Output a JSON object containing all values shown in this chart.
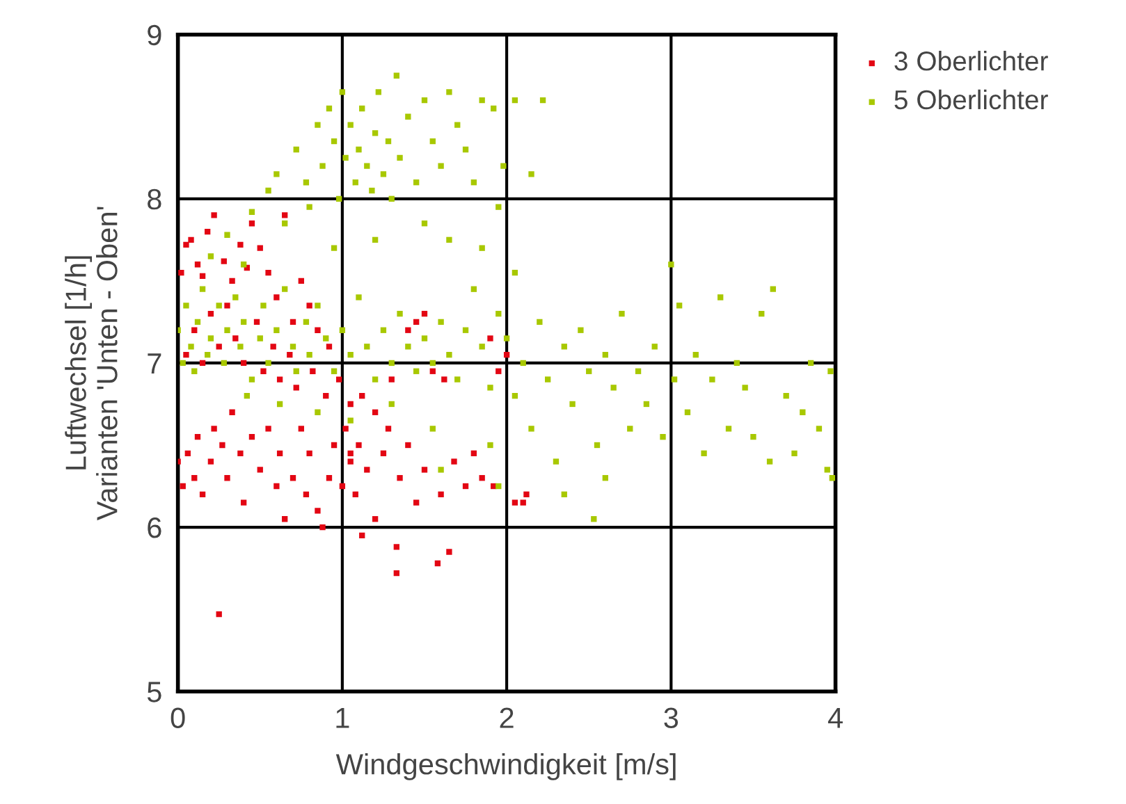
{
  "chart_data": {
    "type": "scatter",
    "xlabel": "Windgeschwindigkeit [m/s]",
    "ylabel": "Luftwechsel [1/h]\nVarianten 'Unten - Oben'",
    "xlim": [
      0,
      4
    ],
    "xticks": [
      0,
      1,
      2,
      3,
      4
    ],
    "ylim": [
      5,
      9
    ],
    "yticks": [
      5,
      6,
      7,
      8,
      9
    ],
    "grid": true,
    "legend": "top right",
    "marker": "square",
    "series": [
      {
        "name": "3 Oberlichter",
        "color": "#e30613",
        "x": [
          0.02,
          0.05,
          0.08,
          0.12,
          0.15,
          0.18,
          0.22,
          0.28,
          0.3,
          0.33,
          0.38,
          0.42,
          0.45,
          0.5,
          0.55,
          0.6,
          0.65,
          0.7,
          0.75,
          0.8,
          0.1,
          0.2,
          0.35,
          0.48,
          0.58,
          0.68,
          0.85,
          0.92,
          0.05,
          0.15,
          0.25,
          0.4,
          0.52,
          0.62,
          0.72,
          0.82,
          0.9,
          0.98,
          1.05,
          1.12,
          1.2,
          1.3,
          1.4,
          1.45,
          1.5,
          1.55,
          1.62,
          1.9,
          1.95,
          2.0,
          0.0,
          0.03,
          0.06,
          0.1,
          0.12,
          0.15,
          0.2,
          0.22,
          0.27,
          0.3,
          0.33,
          0.38,
          0.4,
          0.45,
          0.5,
          0.55,
          0.6,
          0.62,
          0.65,
          0.7,
          0.75,
          0.78,
          0.8,
          0.85,
          0.88,
          0.92,
          0.95,
          1.0,
          1.02,
          1.05,
          1.08,
          1.1,
          1.15,
          1.2,
          1.25,
          1.28,
          1.35,
          1.4,
          1.45,
          1.5,
          1.6,
          1.68,
          1.75,
          1.8,
          1.85,
          1.92,
          2.05,
          2.1,
          2.12,
          0.25,
          1.33,
          1.33,
          1.58,
          1.65,
          1.12,
          1.05
        ],
        "values": [
          7.55,
          7.72,
          7.75,
          7.6,
          7.53,
          7.8,
          7.9,
          7.62,
          7.35,
          7.5,
          7.72,
          7.58,
          7.85,
          7.7,
          7.55,
          7.4,
          7.9,
          7.25,
          7.5,
          7.35,
          7.2,
          7.3,
          7.15,
          7.25,
          7.1,
          7.05,
          7.2,
          7.1,
          7.05,
          7.0,
          7.1,
          7.0,
          6.95,
          6.9,
          6.85,
          6.95,
          6.8,
          6.9,
          6.75,
          6.8,
          6.7,
          6.9,
          7.2,
          7.25,
          7.3,
          6.95,
          6.9,
          7.15,
          6.95,
          7.05,
          6.4,
          6.25,
          6.45,
          6.3,
          6.55,
          6.2,
          6.4,
          6.6,
          6.5,
          6.3,
          6.7,
          6.45,
          6.15,
          6.55,
          6.35,
          6.6,
          6.25,
          6.45,
          6.05,
          6.3,
          6.6,
          6.2,
          6.45,
          6.1,
          6.0,
          6.3,
          6.5,
          6.25,
          6.6,
          6.4,
          6.2,
          6.5,
          6.35,
          6.05,
          6.45,
          6.6,
          6.3,
          6.5,
          6.15,
          6.35,
          6.2,
          6.4,
          6.25,
          6.45,
          6.3,
          6.25,
          6.15,
          6.15,
          6.2,
          5.47,
          5.72,
          5.88,
          5.78,
          5.85,
          5.95,
          6.45
        ]
      },
      {
        "name": "5 Oberlichter",
        "color": "#a8c800",
        "x": [
          0.3,
          0.45,
          0.55,
          0.6,
          0.65,
          0.72,
          0.78,
          0.8,
          0.85,
          0.88,
          0.92,
          0.95,
          0.98,
          1.0,
          1.02,
          1.05,
          1.08,
          1.1,
          1.12,
          1.15,
          1.18,
          1.2,
          1.22,
          1.25,
          1.28,
          1.3,
          1.33,
          1.35,
          1.4,
          1.45,
          1.5,
          1.55,
          1.6,
          1.65,
          1.7,
          1.75,
          1.8,
          1.85,
          1.92,
          2.05,
          2.22,
          1.98,
          2.15,
          1.5,
          1.65,
          1.2,
          0.95,
          0.4,
          0.2,
          1.85,
          2.05,
          1.95,
          0.0,
          0.03,
          0.05,
          0.08,
          0.1,
          0.12,
          0.15,
          0.18,
          0.2,
          0.25,
          0.28,
          0.3,
          0.35,
          0.38,
          0.4,
          0.45,
          0.5,
          0.52,
          0.55,
          0.6,
          0.65,
          0.7,
          0.72,
          0.78,
          0.8,
          0.85,
          0.9,
          0.95,
          1.0,
          1.05,
          1.1,
          1.15,
          1.2,
          1.25,
          1.3,
          1.35,
          1.4,
          1.45,
          1.5,
          1.55,
          1.6,
          1.65,
          1.7,
          1.75,
          1.8,
          1.85,
          1.9,
          1.95,
          0.42,
          0.62,
          0.85,
          1.05,
          1.3,
          1.55,
          1.9,
          2.0,
          2.05,
          2.1,
          2.15,
          2.2,
          2.25,
          2.3,
          2.35,
          2.4,
          2.45,
          2.5,
          2.53,
          2.55,
          2.6,
          2.65,
          2.7,
          2.75,
          2.8,
          2.85,
          2.9,
          2.95,
          3.0,
          3.02,
          3.05,
          3.1,
          3.15,
          3.2,
          3.25,
          3.3,
          3.35,
          3.4,
          3.45,
          3.5,
          3.55,
          3.6,
          3.62,
          3.7,
          3.75,
          3.8,
          3.85,
          3.9,
          3.95,
          3.98,
          3.97,
          2.6,
          2.35,
          1.95,
          1.6
        ],
        "values": [
          7.78,
          7.92,
          8.05,
          8.15,
          7.85,
          8.3,
          8.1,
          7.95,
          8.45,
          8.2,
          8.55,
          8.35,
          8.0,
          8.65,
          8.25,
          8.45,
          8.1,
          8.3,
          8.55,
          8.2,
          8.05,
          8.4,
          8.65,
          8.15,
          8.35,
          8.0,
          8.75,
          8.25,
          8.5,
          8.1,
          8.6,
          8.35,
          8.2,
          8.65,
          8.45,
          8.3,
          8.1,
          8.6,
          8.55,
          8.6,
          8.6,
          8.2,
          8.15,
          7.85,
          7.75,
          7.75,
          7.7,
          7.6,
          7.65,
          7.7,
          7.55,
          7.95,
          7.2,
          7.0,
          7.35,
          7.1,
          6.95,
          7.25,
          7.45,
          7.05,
          7.15,
          7.35,
          7.0,
          7.2,
          7.4,
          7.1,
          7.25,
          6.9,
          7.15,
          7.35,
          7.0,
          7.2,
          7.45,
          7.1,
          6.95,
          7.25,
          7.05,
          7.35,
          7.15,
          6.95,
          7.2,
          7.05,
          7.4,
          7.1,
          6.9,
          7.2,
          7.0,
          7.3,
          7.1,
          6.95,
          7.15,
          7.0,
          7.25,
          7.05,
          6.9,
          7.2,
          7.45,
          7.1,
          6.85,
          7.3,
          6.8,
          6.75,
          6.7,
          6.65,
          6.75,
          6.6,
          6.5,
          7.15,
          6.8,
          7.0,
          6.6,
          7.25,
          6.9,
          6.4,
          7.1,
          6.75,
          7.2,
          6.95,
          6.05,
          6.5,
          7.05,
          6.85,
          7.3,
          6.6,
          6.95,
          6.75,
          7.1,
          6.55,
          7.6,
          6.9,
          7.35,
          6.7,
          7.05,
          6.45,
          6.9,
          7.4,
          6.6,
          7.0,
          6.85,
          6.55,
          7.3,
          6.4,
          7.45,
          6.8,
          6.45,
          6.7,
          7.0,
          6.6,
          6.35,
          6.3,
          6.95,
          6.3,
          6.2,
          6.25,
          6.35
        ]
      }
    ]
  }
}
